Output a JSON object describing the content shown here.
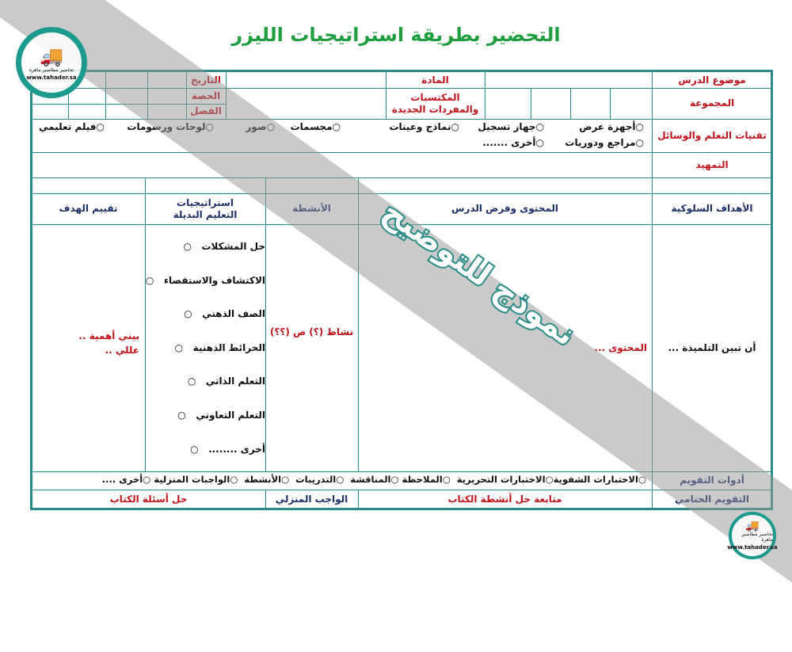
{
  "title": "التحضير بطريقة استراتيجيات الليزر",
  "header": {
    "lesson_topic": "موضوع الدرس",
    "group": "المجموعة",
    "subject": "المادة",
    "acquired": "المكتسبات والمفردات الجديدة",
    "date": "التاريخ",
    "period": "الحصة",
    "class": "الفصل"
  },
  "tech": {
    "label": "تقنيات التعلم والوسائل",
    "options": [
      "أجهزة عرض",
      "جهاز تسجيل",
      "نماذج وعينات",
      "مجسمات",
      "صور",
      "لوحات ورسومات",
      "فيلم تعليمي",
      "مراجع ودوريات",
      "أخرى ......."
    ]
  },
  "intro": "التمهيد",
  "columns": {
    "objectives": "الأهداف السلوكية",
    "content": "المحتوى وفرض الدرس",
    "activities": "الأنشطة",
    "strategies": "استراتيجيات التعليم البديلة",
    "evaluation": "تقييم الهدف"
  },
  "body": {
    "objective": "أن تبين التلميذة ...",
    "content": "المحتوى ...",
    "activity": "نشاط (؟) ص (؟؟)",
    "evaluation": "بيني أهمية .. عللي ..",
    "strategies": [
      "حل المشكلات",
      "الاكتشاف والاستقصاء",
      "الصف الذهني",
      "الخرائط الذهنية",
      "التعلم الذاتي",
      "التعلم التعاوني",
      "أخرى ........"
    ]
  },
  "assessment": {
    "label": "أدوات التقويم",
    "options": [
      "الاختبارات الشفوية",
      "الاختبارات التحريرية",
      "الملاحظة",
      "المناقشة",
      "التدريبات",
      "الأنشطة",
      "الواجبات المنزلية",
      "أخرى ...."
    ]
  },
  "closing": {
    "label": "التقويم الختامي",
    "followup": "متابعة حل أنشطة الكتاب",
    "homework_label": "الواجب المنزلي",
    "homework": "حل أسئلة الكتاب"
  },
  "watermark": "نموذج للتوضيح",
  "logo": {
    "site": "www.tahader.sa",
    "brand": "تحاضير مطاضير ماهرة"
  },
  "colors": {
    "border": "#2a8c86",
    "title": "#1f9e3f",
    "label_red": "#c0141c",
    "label_navy": "#1c2f6b"
  }
}
